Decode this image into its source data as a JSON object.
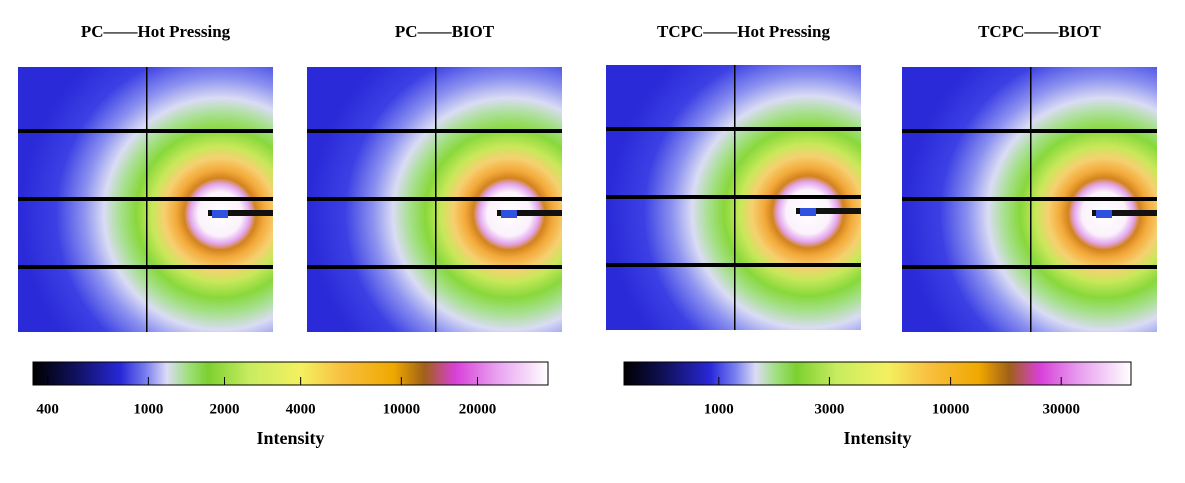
{
  "panels": [
    {
      "title": "PC——Hot Pressing"
    },
    {
      "title": "PC——BIOT"
    },
    {
      "title": "TCPC——Hot Pressing"
    },
    {
      "title": "TCPC——BIOT"
    }
  ],
  "colorbars": [
    {
      "label": "Intensity",
      "scale": "log",
      "lim": [
        350,
        38000
      ],
      "ticks": [
        400,
        1000,
        2000,
        4000,
        10000,
        20000
      ]
    },
    {
      "label": "Intensity",
      "scale": "log",
      "lim": [
        390,
        60000
      ],
      "ticks": [
        1000,
        3000,
        10000,
        30000
      ]
    }
  ]
}
